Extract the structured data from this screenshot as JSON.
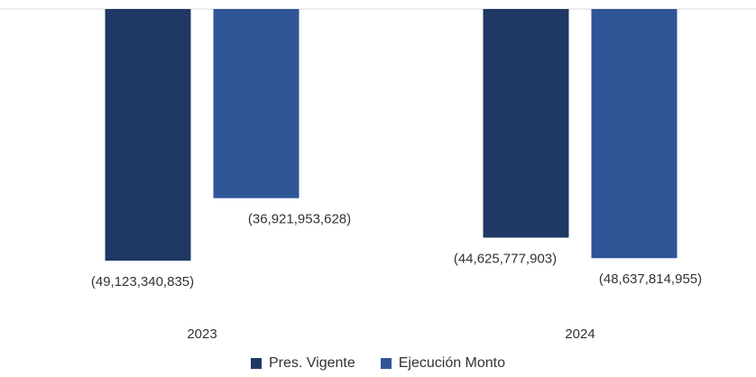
{
  "chart_data": {
    "type": "bar",
    "categories": [
      "2023",
      "2024"
    ],
    "series": [
      {
        "name": "Pres. Vigente",
        "color": "#1f3864",
        "values": [
          -49123340835,
          -44625777903
        ],
        "labels": [
          "(49,123,340,835)",
          "(44,625,777,903)"
        ]
      },
      {
        "name": "Ejecución Monto",
        "color": "#2f5597",
        "values": [
          -36921953628,
          -48637814955
        ],
        "labels": [
          "(36,921,953,628)",
          "(48,637,814,955)"
        ]
      }
    ],
    "ylim": [
      -49123340835,
      0
    ],
    "grid": false,
    "legend": "bottom"
  }
}
